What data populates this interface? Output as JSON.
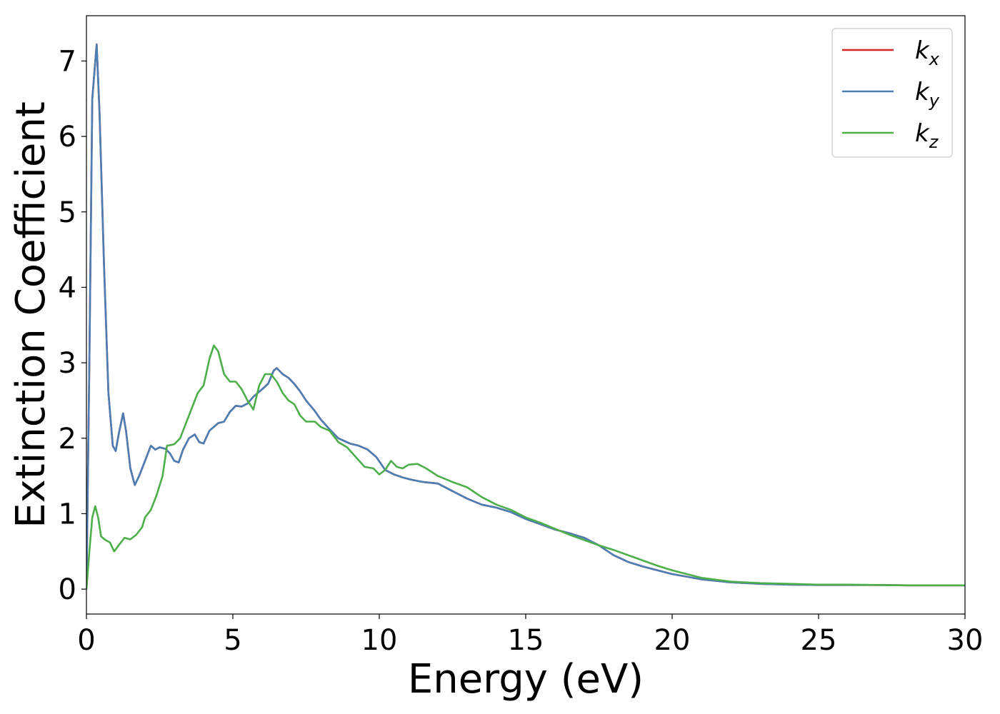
{
  "chart_data": {
    "type": "line",
    "xlabel": "Energy (eV)",
    "ylabel": "Extinction Coefficient",
    "xlim": [
      0,
      30
    ],
    "ylim": [
      -0.33,
      7.6
    ],
    "xticks": [
      0,
      5,
      10,
      15,
      20,
      25,
      30
    ],
    "yticks": [
      0,
      1,
      2,
      3,
      4,
      5,
      6,
      7
    ],
    "grid": false,
    "legend_position": "top-right",
    "series": [
      {
        "name": "k_x",
        "label_base": "k",
        "label_sub": "x",
        "color": "#d62728",
        "points": [
          [
            0,
            0
          ],
          [
            0.1,
            3.0
          ],
          [
            0.2,
            6.5
          ],
          [
            0.35,
            7.22
          ],
          [
            0.45,
            6.3
          ],
          [
            0.6,
            4.3
          ],
          [
            0.75,
            2.6
          ],
          [
            0.9,
            1.9
          ],
          [
            1.0,
            1.83
          ],
          [
            1.1,
            2.05
          ],
          [
            1.25,
            2.33
          ],
          [
            1.35,
            2.1
          ],
          [
            1.5,
            1.6
          ],
          [
            1.65,
            1.38
          ],
          [
            1.8,
            1.5
          ],
          [
            2.0,
            1.7
          ],
          [
            2.2,
            1.9
          ],
          [
            2.35,
            1.85
          ],
          [
            2.5,
            1.88
          ],
          [
            2.7,
            1.86
          ],
          [
            2.85,
            1.8
          ],
          [
            3.0,
            1.7
          ],
          [
            3.15,
            1.68
          ],
          [
            3.3,
            1.85
          ],
          [
            3.5,
            2.0
          ],
          [
            3.7,
            2.05
          ],
          [
            3.85,
            1.95
          ],
          [
            4.0,
            1.93
          ],
          [
            4.2,
            2.1
          ],
          [
            4.5,
            2.2
          ],
          [
            4.7,
            2.22
          ],
          [
            4.9,
            2.35
          ],
          [
            5.1,
            2.43
          ],
          [
            5.3,
            2.42
          ],
          [
            5.5,
            2.46
          ],
          [
            5.7,
            2.55
          ],
          [
            6.0,
            2.65
          ],
          [
            6.2,
            2.72
          ],
          [
            6.4,
            2.9
          ],
          [
            6.5,
            2.93
          ],
          [
            6.7,
            2.85
          ],
          [
            6.9,
            2.8
          ],
          [
            7.1,
            2.72
          ],
          [
            7.3,
            2.62
          ],
          [
            7.5,
            2.5
          ],
          [
            7.8,
            2.36
          ],
          [
            8.0,
            2.25
          ],
          [
            8.3,
            2.12
          ],
          [
            8.6,
            2.0
          ],
          [
            9.0,
            1.93
          ],
          [
            9.3,
            1.9
          ],
          [
            9.6,
            1.85
          ],
          [
            9.9,
            1.75
          ],
          [
            10.2,
            1.58
          ],
          [
            10.5,
            1.52
          ],
          [
            10.8,
            1.48
          ],
          [
            11.1,
            1.45
          ],
          [
            11.5,
            1.42
          ],
          [
            12.0,
            1.4
          ],
          [
            12.5,
            1.3
          ],
          [
            13.0,
            1.2
          ],
          [
            13.5,
            1.12
          ],
          [
            14.0,
            1.08
          ],
          [
            14.5,
            1.02
          ],
          [
            15.0,
            0.93
          ],
          [
            15.5,
            0.86
          ],
          [
            16.0,
            0.79
          ],
          [
            16.5,
            0.74
          ],
          [
            17.0,
            0.68
          ],
          [
            17.5,
            0.58
          ],
          [
            18.0,
            0.45
          ],
          [
            18.5,
            0.36
          ],
          [
            19.0,
            0.3
          ],
          [
            19.5,
            0.25
          ],
          [
            20.0,
            0.2
          ],
          [
            21.0,
            0.13
          ],
          [
            22.0,
            0.09
          ],
          [
            23.0,
            0.07
          ],
          [
            24.0,
            0.06
          ],
          [
            25.0,
            0.055
          ],
          [
            26.0,
            0.055
          ],
          [
            27.0,
            0.055
          ],
          [
            28.0,
            0.05
          ],
          [
            29.0,
            0.05
          ],
          [
            30.0,
            0.05
          ]
        ]
      },
      {
        "name": "k_y",
        "label_base": "k",
        "label_sub": "y",
        "color": "#4a7eb5",
        "points": [
          [
            0,
            0
          ],
          [
            0.1,
            3.0
          ],
          [
            0.2,
            6.5
          ],
          [
            0.35,
            7.22
          ],
          [
            0.45,
            6.3
          ],
          [
            0.6,
            4.3
          ],
          [
            0.75,
            2.6
          ],
          [
            0.9,
            1.9
          ],
          [
            1.0,
            1.83
          ],
          [
            1.1,
            2.05
          ],
          [
            1.25,
            2.33
          ],
          [
            1.35,
            2.1
          ],
          [
            1.5,
            1.6
          ],
          [
            1.65,
            1.38
          ],
          [
            1.8,
            1.5
          ],
          [
            2.0,
            1.7
          ],
          [
            2.2,
            1.9
          ],
          [
            2.35,
            1.85
          ],
          [
            2.5,
            1.88
          ],
          [
            2.7,
            1.86
          ],
          [
            2.85,
            1.8
          ],
          [
            3.0,
            1.7
          ],
          [
            3.15,
            1.68
          ],
          [
            3.3,
            1.85
          ],
          [
            3.5,
            2.0
          ],
          [
            3.7,
            2.05
          ],
          [
            3.85,
            1.95
          ],
          [
            4.0,
            1.93
          ],
          [
            4.2,
            2.1
          ],
          [
            4.5,
            2.2
          ],
          [
            4.7,
            2.22
          ],
          [
            4.9,
            2.35
          ],
          [
            5.1,
            2.43
          ],
          [
            5.3,
            2.42
          ],
          [
            5.5,
            2.46
          ],
          [
            5.7,
            2.55
          ],
          [
            6.0,
            2.65
          ],
          [
            6.2,
            2.72
          ],
          [
            6.4,
            2.9
          ],
          [
            6.5,
            2.93
          ],
          [
            6.7,
            2.85
          ],
          [
            6.9,
            2.8
          ],
          [
            7.1,
            2.72
          ],
          [
            7.3,
            2.62
          ],
          [
            7.5,
            2.5
          ],
          [
            7.8,
            2.36
          ],
          [
            8.0,
            2.25
          ],
          [
            8.3,
            2.12
          ],
          [
            8.6,
            2.0
          ],
          [
            9.0,
            1.93
          ],
          [
            9.3,
            1.9
          ],
          [
            9.6,
            1.85
          ],
          [
            9.9,
            1.75
          ],
          [
            10.2,
            1.58
          ],
          [
            10.5,
            1.52
          ],
          [
            10.8,
            1.48
          ],
          [
            11.1,
            1.45
          ],
          [
            11.5,
            1.42
          ],
          [
            12.0,
            1.4
          ],
          [
            12.5,
            1.3
          ],
          [
            13.0,
            1.2
          ],
          [
            13.5,
            1.12
          ],
          [
            14.0,
            1.08
          ],
          [
            14.5,
            1.02
          ],
          [
            15.0,
            0.93
          ],
          [
            15.5,
            0.86
          ],
          [
            16.0,
            0.79
          ],
          [
            16.5,
            0.74
          ],
          [
            17.0,
            0.68
          ],
          [
            17.5,
            0.58
          ],
          [
            18.0,
            0.45
          ],
          [
            18.5,
            0.36
          ],
          [
            19.0,
            0.3
          ],
          [
            19.5,
            0.25
          ],
          [
            20.0,
            0.2
          ],
          [
            21.0,
            0.13
          ],
          [
            22.0,
            0.09
          ],
          [
            23.0,
            0.07
          ],
          [
            24.0,
            0.06
          ],
          [
            25.0,
            0.055
          ],
          [
            26.0,
            0.055
          ],
          [
            27.0,
            0.055
          ],
          [
            28.0,
            0.05
          ],
          [
            29.0,
            0.05
          ],
          [
            30.0,
            0.05
          ]
        ]
      },
      {
        "name": "k_z",
        "label_base": "k",
        "label_sub": "z",
        "color": "#4daf4a",
        "points": [
          [
            0,
            0
          ],
          [
            0.1,
            0.5
          ],
          [
            0.2,
            0.95
          ],
          [
            0.3,
            1.1
          ],
          [
            0.4,
            0.95
          ],
          [
            0.5,
            0.7
          ],
          [
            0.65,
            0.65
          ],
          [
            0.8,
            0.62
          ],
          [
            0.95,
            0.5
          ],
          [
            1.1,
            0.58
          ],
          [
            1.3,
            0.68
          ],
          [
            1.5,
            0.66
          ],
          [
            1.7,
            0.72
          ],
          [
            1.9,
            0.82
          ],
          [
            2.0,
            0.95
          ],
          [
            2.2,
            1.05
          ],
          [
            2.4,
            1.25
          ],
          [
            2.6,
            1.5
          ],
          [
            2.75,
            1.9
          ],
          [
            3.0,
            1.92
          ],
          [
            3.2,
            2.0
          ],
          [
            3.4,
            2.2
          ],
          [
            3.6,
            2.4
          ],
          [
            3.8,
            2.6
          ],
          [
            4.0,
            2.7
          ],
          [
            4.2,
            3.05
          ],
          [
            4.35,
            3.23
          ],
          [
            4.5,
            3.15
          ],
          [
            4.7,
            2.85
          ],
          [
            4.9,
            2.75
          ],
          [
            5.1,
            2.75
          ],
          [
            5.3,
            2.65
          ],
          [
            5.5,
            2.5
          ],
          [
            5.7,
            2.38
          ],
          [
            5.9,
            2.7
          ],
          [
            6.1,
            2.85
          ],
          [
            6.3,
            2.85
          ],
          [
            6.5,
            2.75
          ],
          [
            6.7,
            2.6
          ],
          [
            6.9,
            2.5
          ],
          [
            7.1,
            2.45
          ],
          [
            7.3,
            2.3
          ],
          [
            7.5,
            2.22
          ],
          [
            7.8,
            2.22
          ],
          [
            8.0,
            2.15
          ],
          [
            8.3,
            2.1
          ],
          [
            8.6,
            1.95
          ],
          [
            8.9,
            1.88
          ],
          [
            9.2,
            1.75
          ],
          [
            9.5,
            1.62
          ],
          [
            9.8,
            1.6
          ],
          [
            10.0,
            1.52
          ],
          [
            10.2,
            1.58
          ],
          [
            10.4,
            1.7
          ],
          [
            10.6,
            1.62
          ],
          [
            10.8,
            1.6
          ],
          [
            11.0,
            1.65
          ],
          [
            11.3,
            1.66
          ],
          [
            11.6,
            1.6
          ],
          [
            12.0,
            1.5
          ],
          [
            12.5,
            1.42
          ],
          [
            13.0,
            1.35
          ],
          [
            13.5,
            1.22
          ],
          [
            14.0,
            1.12
          ],
          [
            14.5,
            1.05
          ],
          [
            15.0,
            0.95
          ],
          [
            15.5,
            0.88
          ],
          [
            16.0,
            0.8
          ],
          [
            16.5,
            0.72
          ],
          [
            17.0,
            0.65
          ],
          [
            17.5,
            0.58
          ],
          [
            18.0,
            0.52
          ],
          [
            18.5,
            0.45
          ],
          [
            19.0,
            0.38
          ],
          [
            19.5,
            0.31
          ],
          [
            20.0,
            0.25
          ],
          [
            21.0,
            0.15
          ],
          [
            22.0,
            0.1
          ],
          [
            23.0,
            0.08
          ],
          [
            24.0,
            0.07
          ],
          [
            25.0,
            0.06
          ],
          [
            26.0,
            0.06
          ],
          [
            27.0,
            0.055
          ],
          [
            28.0,
            0.05
          ],
          [
            29.0,
            0.05
          ],
          [
            30.0,
            0.05
          ]
        ]
      }
    ]
  }
}
